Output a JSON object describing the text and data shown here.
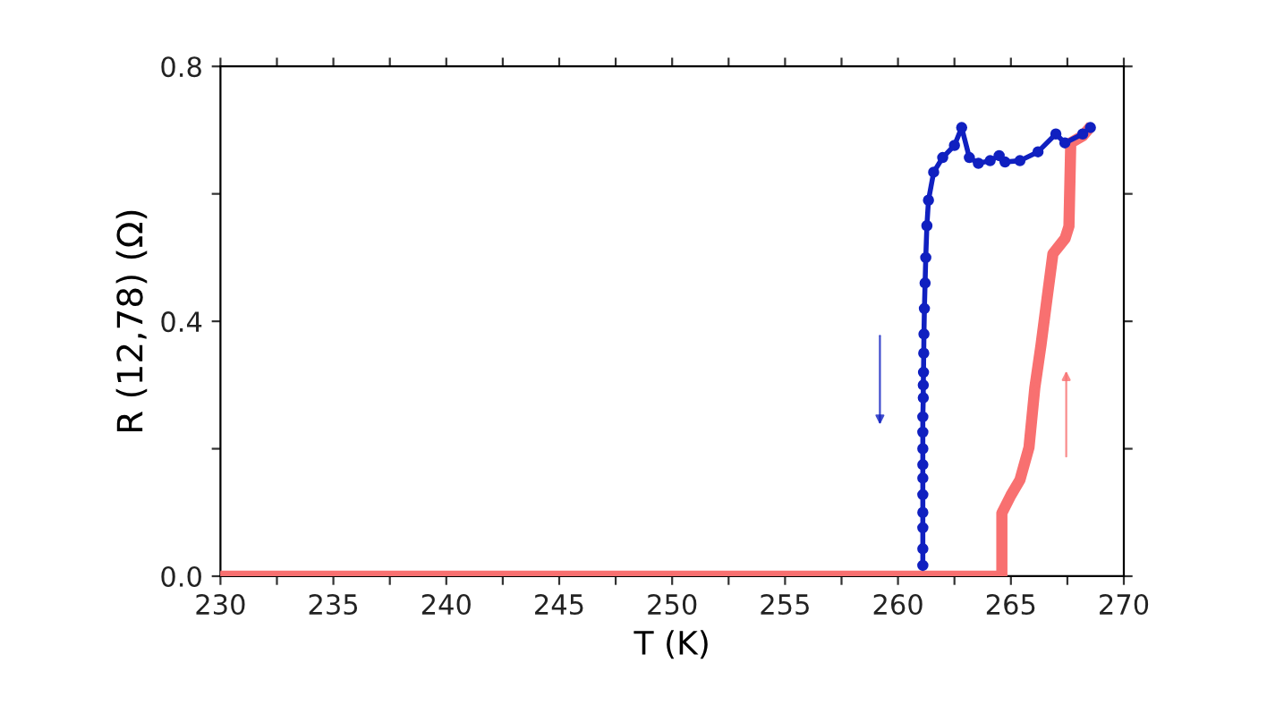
{
  "chart_data": {
    "type": "line",
    "xlabel": "T (K)",
    "ylabel": "R (12,78) (Ω)",
    "xlim": [
      230,
      270
    ],
    "ylim": [
      0,
      0.8
    ],
    "xticks": [
      230,
      {
        "value": 232.5,
        "label": null
      },
      235,
      {
        "value": 237.5,
        "label": null
      },
      240,
      {
        "value": 242.5,
        "label": null
      },
      245,
      {
        "value": 247.5,
        "label": null
      },
      250,
      {
        "value": 252.5,
        "label": null
      },
      255,
      {
        "value": 257.5,
        "label": null
      },
      260,
      {
        "value": 262.5,
        "label": null
      },
      265,
      {
        "value": 267.5,
        "label": null
      },
      270
    ],
    "yticks": [
      {
        "value": 0,
        "label": "0.0"
      },
      {
        "value": 0.2,
        "label": null
      },
      0.4,
      {
        "value": 0.6,
        "label": null
      },
      0.8
    ],
    "grid": false,
    "legend": false,
    "series": [
      {
        "color": "#1020c0",
        "marker": "circle",
        "x": [
          261.1,
          261.1,
          261.1,
          261.1,
          261.1,
          261.1,
          261.1,
          261.1,
          261.1,
          261.1,
          261.12,
          261.12,
          261.13,
          261.14,
          261.15,
          261.17,
          261.2,
          261.23,
          261.28,
          261.35,
          261.58,
          261.98,
          262.5,
          262.82,
          263.16,
          263.56,
          264.08,
          264.48,
          264.74,
          265.4,
          266.2,
          266.99,
          267.39,
          268.18,
          268.52
        ],
        "values": [
          0.017,
          0.043,
          0.076,
          0.1,
          0.128,
          0.154,
          0.175,
          0.2,
          0.226,
          0.25,
          0.28,
          0.3,
          0.32,
          0.35,
          0.38,
          0.42,
          0.46,
          0.5,
          0.55,
          0.59,
          0.634,
          0.657,
          0.676,
          0.704,
          0.657,
          0.648,
          0.652,
          0.66,
          0.65,
          0.652,
          0.666,
          0.694,
          0.68,
          0.694,
          0.704
        ]
      },
      {
        "color": "#f87070",
        "marker": "circle",
        "x": [
          230,
          235,
          240,
          245,
          250,
          255,
          260,
          264.6,
          264.6,
          265.0,
          265.4,
          265.8,
          266.06,
          266.33,
          266.6,
          266.86,
          267.4,
          267.57,
          267.65,
          268.18,
          268.4
        ],
        "values": [
          0,
          0,
          0,
          0,
          0,
          0,
          0,
          0,
          0.099,
          0.127,
          0.151,
          0.202,
          0.296,
          0.362,
          0.436,
          0.506,
          0.53,
          0.549,
          0.68,
          0.691,
          0.7
        ]
      }
    ]
  }
}
